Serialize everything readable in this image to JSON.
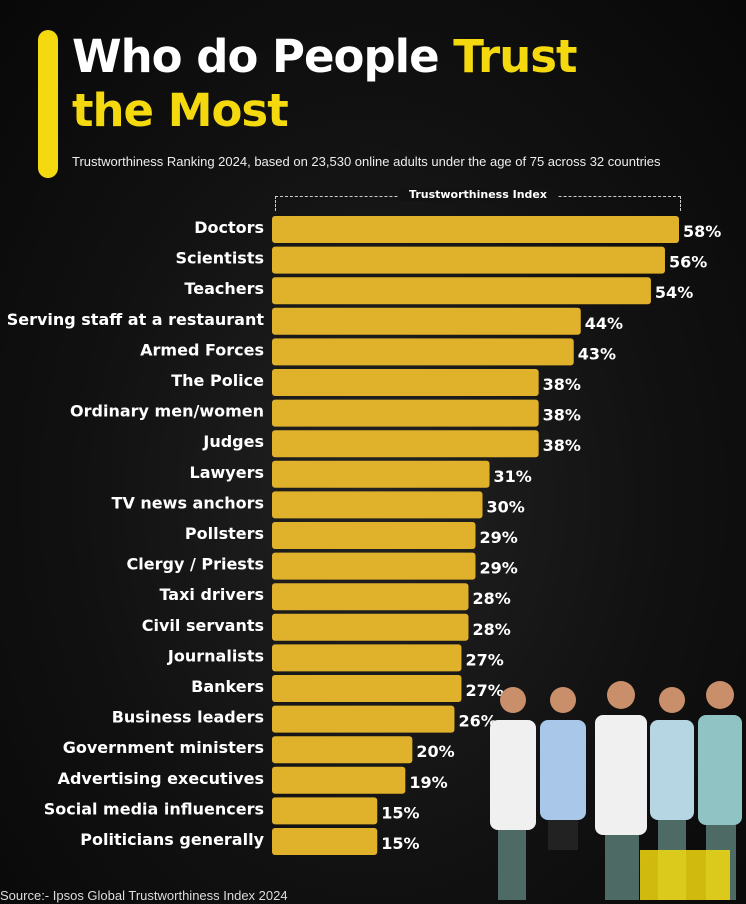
{
  "header": {
    "title_part1": "Who do People ",
    "title_highlight": "Trust",
    "title_line2": "the Most",
    "subtitle": "Trustworthiness Ranking 2024, based on 23,530 online adults under the age of 75 across 32 countries"
  },
  "colors": {
    "accent": "#f5d90f",
    "bar": "#e0b12a",
    "background": "#0d0d0d"
  },
  "chart_data": {
    "type": "bar",
    "orientation": "horizontal",
    "title": "Who do People Trust the Most",
    "xlabel": "Trustworthiness Index",
    "unit": "%",
    "xlim": [
      0,
      58
    ],
    "categories": [
      "Doctors",
      "Scientists",
      "Teachers",
      "Serving staff at a restaurant",
      "Armed Forces",
      "The Police",
      "Ordinary men/women",
      "Judges",
      "Lawyers",
      "TV news anchors",
      "Pollsters",
      "Clergy / Priests",
      "Taxi drivers",
      "Civil servants",
      "Journalists",
      "Bankers",
      "Business leaders",
      "Government ministers",
      "Advertising executives",
      "Social media influencers",
      "Politicians generally"
    ],
    "values": [
      58,
      56,
      54,
      44,
      43,
      38,
      38,
      38,
      31,
      30,
      29,
      29,
      28,
      28,
      27,
      27,
      26,
      20,
      19,
      15,
      15
    ],
    "labels": [
      "58%",
      "56%",
      "54%",
      "44%",
      "43%",
      "38%",
      "38%",
      "38%",
      "31%",
      "30%",
      "29%",
      "29%",
      "28%",
      "28%",
      "27%",
      "27%",
      "26%",
      "20%",
      "19%",
      "15%",
      "15%"
    ]
  },
  "footer": {
    "source": "Source:- Ipsos Global Trustworthiness Index 2024"
  }
}
